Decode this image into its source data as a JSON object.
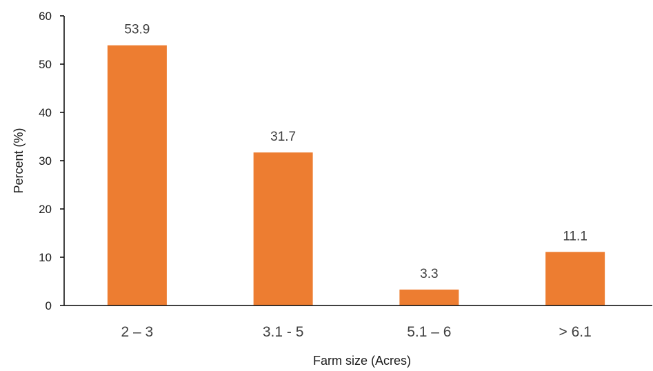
{
  "chart_data": {
    "type": "bar",
    "categories": [
      "2 – 3",
      "3.1 - 5",
      "5.1 – 6",
      "> 6.1"
    ],
    "values": [
      53.9,
      31.7,
      3.3,
      11.1
    ],
    "data_labels": [
      "53.9",
      "31.7",
      "3.3",
      "11.1"
    ],
    "title": "",
    "xlabel": "Farm size (Acres)",
    "ylabel": "Percent (%)",
    "ylim": [
      0,
      60
    ],
    "yticks": [
      0,
      10,
      20,
      30,
      40,
      50,
      60
    ],
    "ytick_labels": [
      "0",
      "10",
      "20",
      "30",
      "40",
      "50",
      "60"
    ],
    "grid": false,
    "legend": "none",
    "bar_color": "#ED7D31",
    "axis_color": "#000000"
  }
}
